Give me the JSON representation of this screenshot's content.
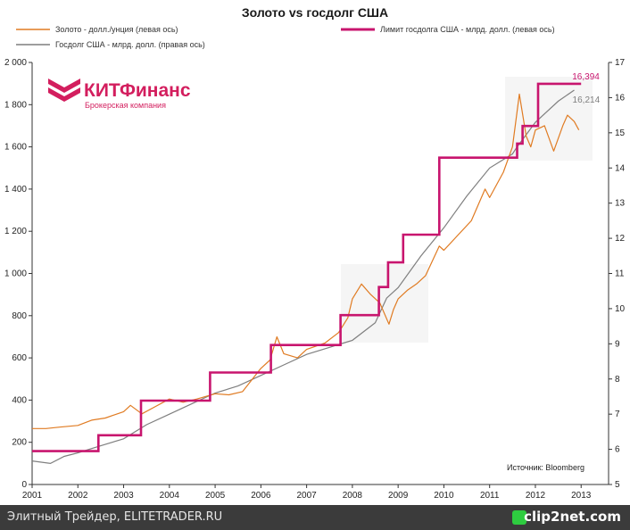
{
  "chart_data": {
    "type": "line",
    "title": "Золото vs госдолг США",
    "legend": [
      {
        "label": "Золото - долл./унция (левая ось)",
        "color": "#e07b22"
      },
      {
        "label": "Лимит госдолга США - млрд. долл. (левая ось)",
        "color": "#c8156e"
      },
      {
        "label": "Госдолг США - млрд. долл. (правая ось)",
        "color": "#7f7f7f"
      }
    ],
    "x_ticks": [
      "2001",
      "2002",
      "2003",
      "2004",
      "2005",
      "2006",
      "2007",
      "2008",
      "2009",
      "2010",
      "2011",
      "2012",
      "2013"
    ],
    "xlim": [
      2001,
      2013.6
    ],
    "y_left": {
      "ticks": [
        "0",
        "200",
        "400",
        "600",
        "800",
        "1 000",
        "1 200",
        "1 400",
        "1 600",
        "1 800",
        "2 000"
      ],
      "lim": [
        0,
        2000
      ]
    },
    "y_right": {
      "ticks": [
        "5",
        "6",
        "7",
        "8",
        "9",
        "10",
        "11",
        "12",
        "13",
        "14",
        "15",
        "16",
        "17"
      ],
      "lim": [
        5,
        17
      ]
    },
    "gold": {
      "x": [
        2001.0,
        2001.3,
        2001.6,
        2002.0,
        2002.3,
        2002.6,
        2003.0,
        2003.15,
        2003.4,
        2003.7,
        2004.0,
        2004.3,
        2004.6,
        2005.0,
        2005.3,
        2005.6,
        2006.0,
        2006.2,
        2006.35,
        2006.5,
        2006.8,
        2007.0,
        2007.4,
        2007.7,
        2007.9,
        2008.0,
        2008.2,
        2008.4,
        2008.6,
        2008.8,
        2008.9,
        2009.0,
        2009.2,
        2009.4,
        2009.6,
        2009.9,
        2010.0,
        2010.3,
        2010.6,
        2010.9,
        2011.0,
        2011.3,
        2011.5,
        2011.65,
        2011.8,
        2011.9,
        2012.0,
        2012.2,
        2012.4,
        2012.6,
        2012.7,
        2012.85,
        2012.95
      ],
      "y": [
        265,
        265,
        272,
        280,
        305,
        315,
        345,
        375,
        335,
        370,
        405,
        390,
        405,
        430,
        425,
        440,
        550,
        590,
        700,
        620,
        600,
        640,
        670,
        720,
        790,
        880,
        950,
        900,
        860,
        760,
        830,
        880,
        920,
        950,
        990,
        1130,
        1110,
        1180,
        1250,
        1400,
        1360,
        1480,
        1600,
        1850,
        1650,
        1600,
        1680,
        1700,
        1580,
        1700,
        1750,
        1720,
        1680
      ]
    },
    "debt_limit": {
      "x": [
        2001.0,
        2002.45,
        2003.38,
        2004.89,
        2006.22,
        2007.74,
        2008.58,
        2008.78,
        2009.11,
        2009.9,
        2011.6,
        2011.72,
        2012.06,
        2013.0
      ],
      "y": [
        5.95,
        6.4,
        7.384,
        8.184,
        8.965,
        9.815,
        10.615,
        11.315,
        12.104,
        14.294,
        14.694,
        15.194,
        16.394,
        16.394
      ]
    },
    "debt": {
      "x": [
        2001.0,
        2001.4,
        2001.7,
        2002.0,
        2002.5,
        2003.0,
        2003.5,
        2004.0,
        2004.5,
        2005.0,
        2005.5,
        2006.0,
        2006.5,
        2007.0,
        2007.5,
        2008.0,
        2008.5,
        2008.75,
        2009.0,
        2009.5,
        2010.0,
        2010.5,
        2011.0,
        2011.5,
        2011.6,
        2012.0,
        2012.5,
        2012.85
      ],
      "y": [
        5.67,
        5.6,
        5.8,
        5.9,
        6.1,
        6.3,
        6.7,
        7.0,
        7.3,
        7.6,
        7.8,
        8.1,
        8.4,
        8.7,
        8.9,
        9.1,
        9.6,
        10.3,
        10.6,
        11.5,
        12.3,
        13.2,
        14.0,
        14.4,
        14.6,
        15.3,
        15.9,
        16.214
      ]
    },
    "end_labels": {
      "debt_limit": "16,394",
      "debt": "16,214"
    },
    "source_note": "Источник: Bloomberg"
  },
  "brand": {
    "name": "КИТФинанс",
    "subtitle": "Брокерская компания"
  },
  "footer": {
    "left": "Элитный Трейдер, ELITETRADER.RU",
    "right": "clip2net.com"
  }
}
